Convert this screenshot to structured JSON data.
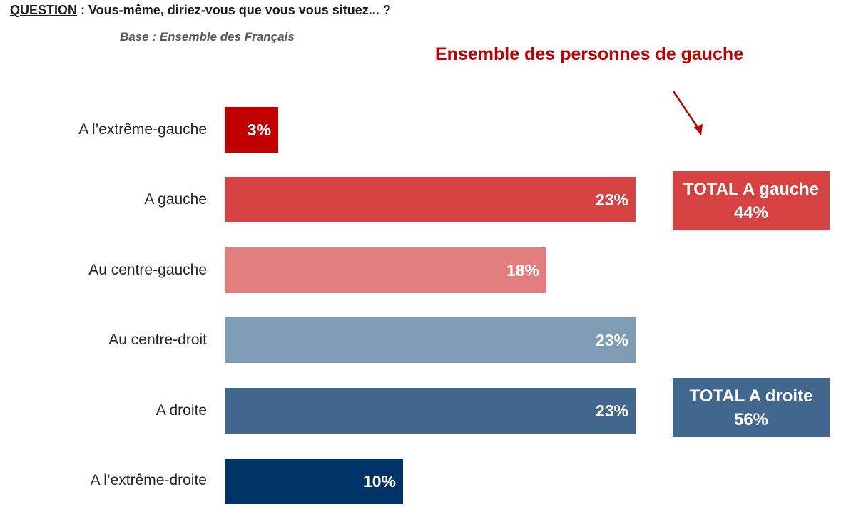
{
  "question": {
    "label": "QUESTION",
    "text": " : Vous-même, diriez-vous que vous vous situez... ?"
  },
  "base": "Base : Ensemble des Français",
  "annotation": "Ensemble des personnes de gauche",
  "colors": {
    "extreme_gauche": "#c00000",
    "gauche": "#d64141",
    "centre_gauche": "#e47e7e",
    "centre_droit": "#7f9cb5",
    "droite": "#41678e",
    "extreme_droite": "#003366",
    "total_gauche": "#d64141",
    "total_droite": "#41678e",
    "annotation": "#c00000"
  },
  "chart_data": {
    "type": "bar",
    "orientation": "horizontal",
    "categories": [
      "A l’extrême-gauche",
      "A gauche",
      "Au centre-gauche",
      "Au centre-droit",
      "A droite",
      "A l’extrême-droite"
    ],
    "values": [
      3,
      23,
      18,
      23,
      23,
      10
    ],
    "value_labels": [
      "3%",
      "23%",
      "18%",
      "23%",
      "23%",
      "10%"
    ],
    "unit": "%",
    "grid": false,
    "xlim": [
      0,
      23
    ]
  },
  "totals": {
    "gauche": {
      "label": "TOTAL A gauche",
      "value": "44%"
    },
    "droite": {
      "label": "TOTAL A droite",
      "value": "56%"
    }
  }
}
